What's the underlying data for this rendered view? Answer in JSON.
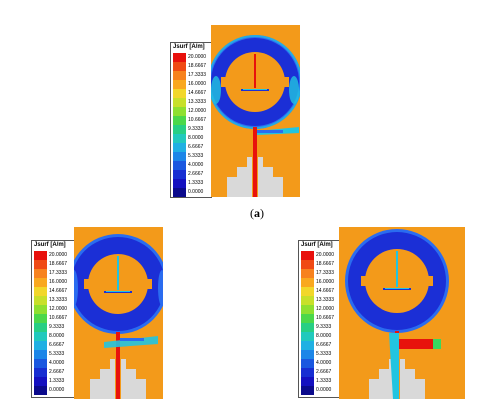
{
  "legend_title": "Jsurf [A/m]",
  "legend_values": [
    "20.0000",
    "18.6667",
    "17.3333",
    "16.0000",
    "14.6667",
    "13.3333",
    "12.0000",
    "10.6667",
    "9.3333",
    "8.0000",
    "6.6667",
    "5.3333",
    "4.0000",
    "2.6667",
    "1.3333",
    "0.0000"
  ],
  "legend_colors": [
    "#e8100c",
    "#f04a14",
    "#f7821e",
    "#f9a81f",
    "#f2d72a",
    "#c8e02a",
    "#8fe030",
    "#4bd84a",
    "#27cf84",
    "#21c9bd",
    "#1fb0e3",
    "#1c86e8",
    "#1a58e0",
    "#172ed2",
    "#1410c0",
    "#0b0a8c"
  ],
  "caption_a": "(a)",
  "colors": {
    "orange": "#f39a1a",
    "dark_blue": "#1b2fd6",
    "mid_blue": "#2a6cf0",
    "cyan": "#22c4e0",
    "green": "#39d860",
    "red": "#e8120c",
    "gray": "#d9d9d9"
  }
}
